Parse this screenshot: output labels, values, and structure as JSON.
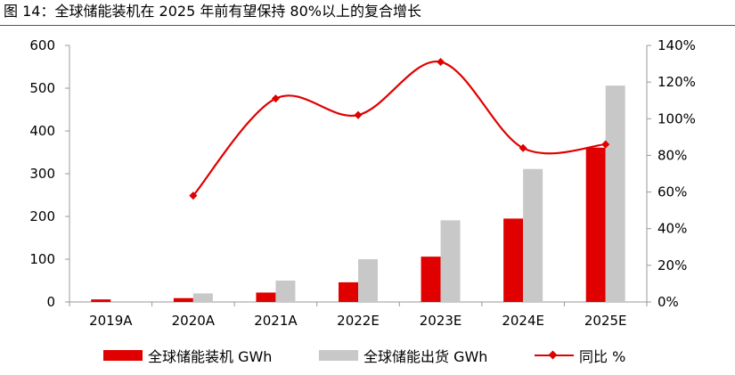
{
  "title": "图 14：全球储能装机在 2025 年前有望保持 80%以上的复合增长",
  "colors": {
    "installed": "#E00000",
    "shipment": "#C8C8C8",
    "growth": "#E00000",
    "axis": "#999999"
  },
  "legend": {
    "installed": "全球储能装机 GWh",
    "shipment": "全球储能出货 GWh",
    "growth": "同比 %"
  },
  "chart_data": {
    "type": "bar",
    "categories": [
      "2019A",
      "2020A",
      "2021A",
      "2022E",
      "2023E",
      "2024E",
      "2025E"
    ],
    "left_axis": {
      "ylim": [
        0,
        600
      ],
      "ticks": [
        0,
        100,
        200,
        300,
        400,
        500,
        600
      ]
    },
    "right_axis": {
      "ylim": [
        0,
        140
      ],
      "ticks": [
        "0%",
        "20%",
        "40%",
        "60%",
        "80%",
        "100%",
        "120%",
        "140%"
      ]
    },
    "series": [
      {
        "name": "全球储能装机 GWh",
        "type": "bar",
        "axis": "left",
        "values": [
          6,
          9,
          22,
          46,
          106,
          195,
          361
        ]
      },
      {
        "name": "全球储能出货 GWh",
        "type": "bar",
        "axis": "left",
        "values": [
          0,
          20,
          50,
          100,
          191,
          311,
          506
        ]
      },
      {
        "name": "同比 %",
        "type": "line",
        "axis": "right",
        "smooth": true,
        "values": [
          null,
          58,
          111,
          102,
          131,
          84,
          86
        ]
      }
    ],
    "grid": false,
    "legend_position": "bottom"
  }
}
